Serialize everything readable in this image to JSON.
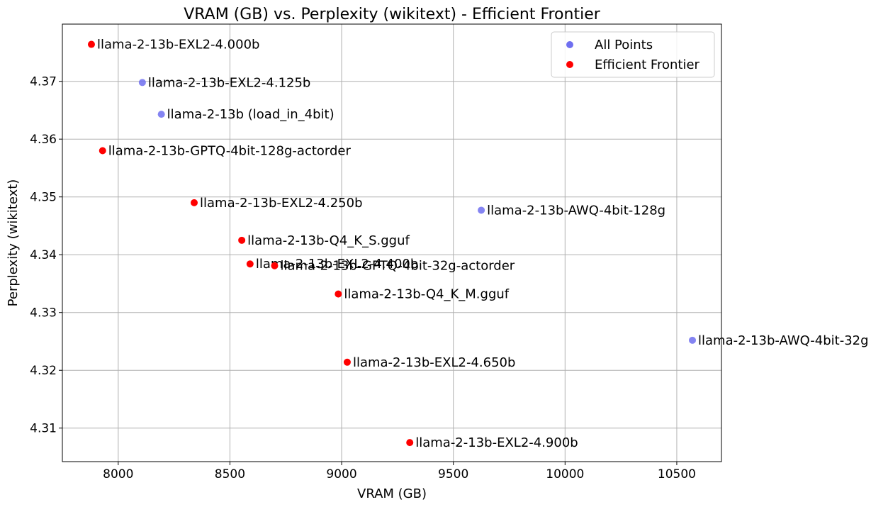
{
  "chart_data": {
    "type": "scatter",
    "title": "VRAM (GB) vs. Perplexity (wikitext) - Efficient Frontier",
    "xlabel": "VRAM (GB)",
    "ylabel": "Perplexity (wikitext)",
    "xlim": [
      7750,
      10700
    ],
    "ylim": [
      4.3042,
      4.3799
    ],
    "xticks": [
      8000,
      8500,
      9000,
      9500,
      10000,
      10500
    ],
    "yticks": [
      4.31,
      4.32,
      4.33,
      4.34,
      4.35,
      4.36,
      4.37
    ],
    "xtick_labels": [
      "8000",
      "8500",
      "9000",
      "9500",
      "10000",
      "10500"
    ],
    "ytick_labels": [
      "4.31",
      "4.32",
      "4.33",
      "4.34",
      "4.35",
      "4.36",
      "4.37"
    ],
    "grid": true,
    "legend_position": "top-right",
    "series": [
      {
        "name": "All Points",
        "color": "#6f6ff0",
        "points": [
          {
            "label": "llama-2-13b-EXL2-4.125b",
            "x": 8108,
            "y": 4.3698
          },
          {
            "label": "llama-2-13b (load_in_4bit)",
            "x": 8193,
            "y": 4.3643
          },
          {
            "label": "llama-2-13b-AWQ-4bit-128g",
            "x": 9625,
            "y": 4.3477
          },
          {
            "label": "llama-2-13b-AWQ-4bit-32g",
            "x": 10570,
            "y": 4.3252
          }
        ]
      },
      {
        "name": "Efficient Frontier",
        "color": "#ff0000",
        "points": [
          {
            "label": "llama-2-13b-EXL2-4.000b",
            "x": 7880,
            "y": 4.3764
          },
          {
            "label": "llama-2-13b-GPTQ-4bit-128g-actorder",
            "x": 7930,
            "y": 4.358
          },
          {
            "label": "llama-2-13b-EXL2-4.250b",
            "x": 8340,
            "y": 4.349
          },
          {
            "label": "llama-2-13b-Q4_K_S.gguf",
            "x": 8553,
            "y": 4.3425
          },
          {
            "label": "llama-2-13b-EXL2-4.400b",
            "x": 8590,
            "y": 4.3384
          },
          {
            "label": "llama-2-13b-GPTQ-4bit-32g-actorder",
            "x": 8700,
            "y": 4.3381
          },
          {
            "label": "llama-2-13b-Q4_K_M.gguf",
            "x": 8985,
            "y": 4.3332
          },
          {
            "label": "llama-2-13b-EXL2-4.650b",
            "x": 9025,
            "y": 4.3214
          },
          {
            "label": "llama-2-13b-EXL2-4.900b",
            "x": 9305,
            "y": 4.3075
          }
        ]
      }
    ]
  }
}
